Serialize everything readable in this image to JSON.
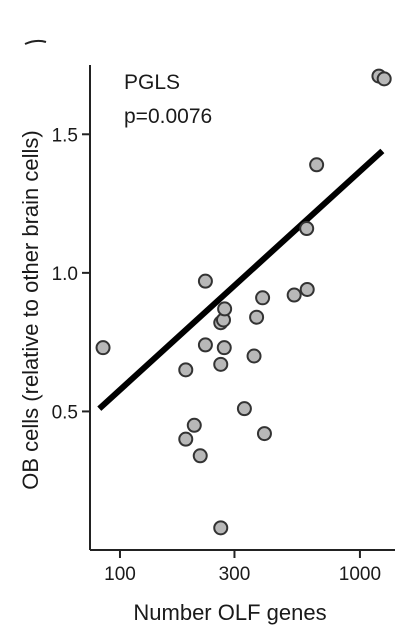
{
  "chart_data": {
    "type": "scatter",
    "title": "",
    "xlabel": "Number OLF genes",
    "ylabel": "OB cells (relative to other brain cells)",
    "x_scale": "log",
    "xlim": [
      75,
      1400
    ],
    "ylim": [
      0.0,
      1.75
    ],
    "x_ticks": [
      100,
      300,
      1000
    ],
    "x_tick_labels": [
      "100",
      "300",
      "1000"
    ],
    "y_ticks": [
      0.5,
      1.0,
      1.5
    ],
    "y_tick_labels": [
      "0.5",
      "1.0",
      "1.5"
    ],
    "grid": false,
    "annotations": [
      "PGLS",
      "p=0.0076"
    ],
    "point_color": "#b8b8b8",
    "point_edge_color": "#333333",
    "fit_color": "#000000",
    "series": [
      {
        "points": [
          [
            85,
            0.73
          ],
          [
            188,
            0.65
          ],
          [
            188,
            0.4
          ],
          [
            204,
            0.45
          ],
          [
            216,
            0.34
          ],
          [
            227,
            0.97
          ],
          [
            227,
            0.74
          ],
          [
            263,
            0.82
          ],
          [
            263,
            0.67
          ],
          [
            270,
            0.83
          ],
          [
            272,
            0.73
          ],
          [
            273,
            0.87
          ],
          [
            263,
            0.08
          ],
          [
            330,
            0.51
          ],
          [
            362,
            0.7
          ],
          [
            371,
            0.84
          ],
          [
            393,
            0.91
          ],
          [
            400,
            0.42
          ],
          [
            532,
            0.92
          ],
          [
            603,
            0.94
          ],
          [
            600,
            1.16
          ],
          [
            660,
            1.39
          ],
          [
            1200,
            1.71
          ],
          [
            1262,
            1.7
          ]
        ]
      }
    ],
    "fit_line": {
      "x": [
        82,
        1240
      ],
      "y": [
        0.51,
        1.44
      ]
    }
  }
}
